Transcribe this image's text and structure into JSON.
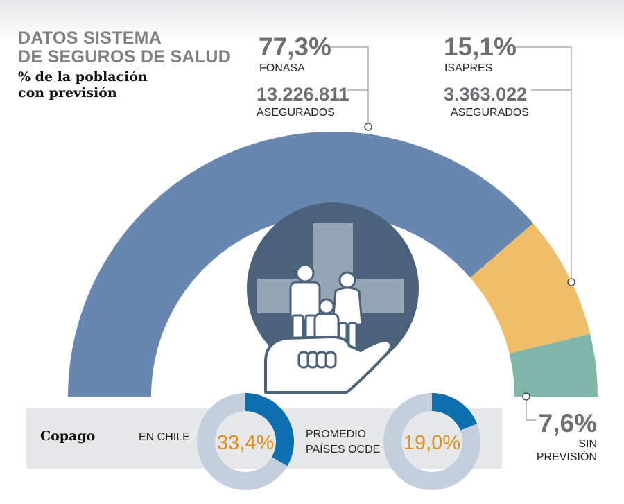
{
  "header": {
    "title_line1": "DATOS SISTEMA",
    "title_line2": "DE SEGUROS DE SALUD",
    "subtitle_line1": "% de la población",
    "subtitle_line2": "con previsión"
  },
  "chart_data": [
    {
      "type": "pie",
      "variant": "half-donut",
      "categories": [
        "FONASA",
        "ISAPRES",
        "SIN PREVISIÓN"
      ],
      "values": [
        77.3,
        15.1,
        7.6
      ],
      "value_labels": [
        "77,3%",
        "15,1%",
        "7,6%"
      ],
      "colors": [
        "#6787b0",
        "#eebe6b",
        "#7fb6a9"
      ],
      "annotations": {
        "fonasa": {
          "percent": "77,3%",
          "name": "FONASA",
          "insured": "13.226.811",
          "insured_label": "ASEGURADOS"
        },
        "isapres": {
          "percent": "15,1%",
          "name": "ISAPRES",
          "insured": "3.363.022",
          "insured_label": "ASEGURADOS"
        },
        "sin_prevision": {
          "percent": "7,6%",
          "name_line1": "SIN",
          "name_line2": "PREVISIÓN"
        }
      }
    },
    {
      "type": "pie",
      "variant": "donut",
      "label": "Copago",
      "categories": [
        "EN CHILE"
      ],
      "values": [
        33.4
      ],
      "value_label": "33,4%",
      "accent": "#0e6fae",
      "track": "#c3cedf",
      "text_color": "#e08e1a"
    },
    {
      "type": "pie",
      "variant": "donut",
      "label": "Copago",
      "categories": [
        "PROMEDIO PAÍSES OCDE"
      ],
      "category_lines": [
        "PROMEDIO",
        "PAÍSES OCDE"
      ],
      "values": [
        19.0
      ],
      "value_label": "19,0%",
      "accent": "#0e6fae",
      "track": "#c3cedf",
      "text_color": "#e08e1a"
    }
  ],
  "copago": {
    "label": "Copago",
    "panel_color": "#e6e7e9"
  },
  "icons": [
    "health-cross-icon",
    "family-icon",
    "open-hand-icon"
  ],
  "colors": {
    "title_gray": "#7f8083",
    "number_gray": "#6e6f72",
    "emblem_circle": "#4b627a",
    "emblem_cross": "#95a5b6",
    "leader_line": "#9a9a9a"
  }
}
